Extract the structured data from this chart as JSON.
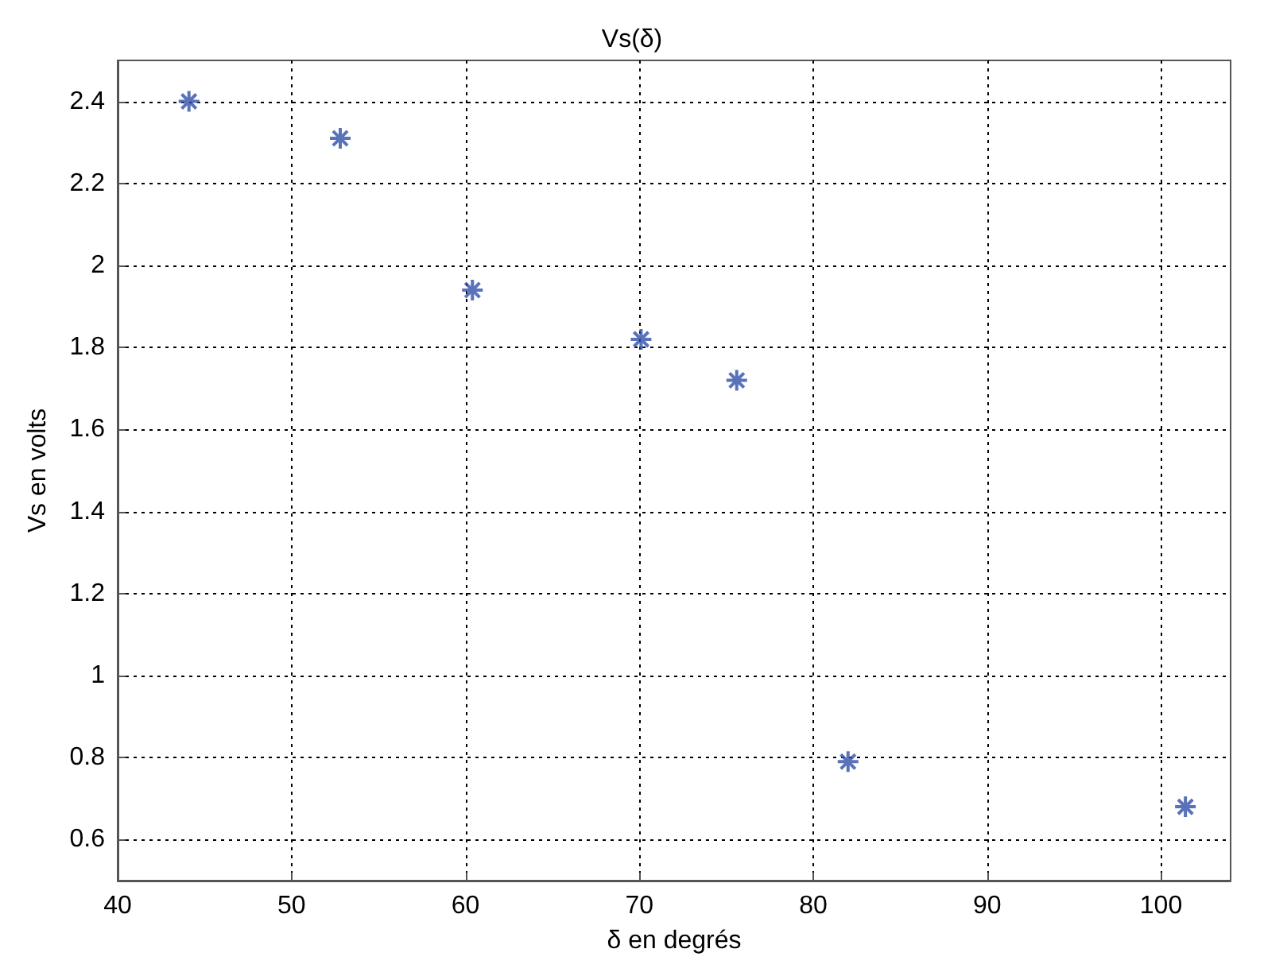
{
  "chart_data": {
    "type": "scatter",
    "title": "Vs(δ)",
    "xlabel": "δ en degrés",
    "ylabel": "Vs en volts",
    "x": [
      44.1,
      52.8,
      60.4,
      70.1,
      75.6,
      82.0,
      101.4
    ],
    "series": [
      {
        "color": "#2f4fa8",
        "values": [
          2.4,
          2.31,
          1.94,
          1.82,
          1.72,
          0.79,
          0.68
        ]
      }
    ],
    "xlim": [
      40,
      104
    ],
    "xticks": [
      40,
      50,
      60,
      70,
      80,
      90,
      100
    ],
    "ylim": [
      0.5,
      2.5
    ],
    "yticks": [
      0.6,
      0.8,
      1,
      1.2,
      1.4,
      1.6,
      1.8,
      2,
      2.2,
      2.4
    ],
    "grid": true,
    "marker": "cross"
  }
}
